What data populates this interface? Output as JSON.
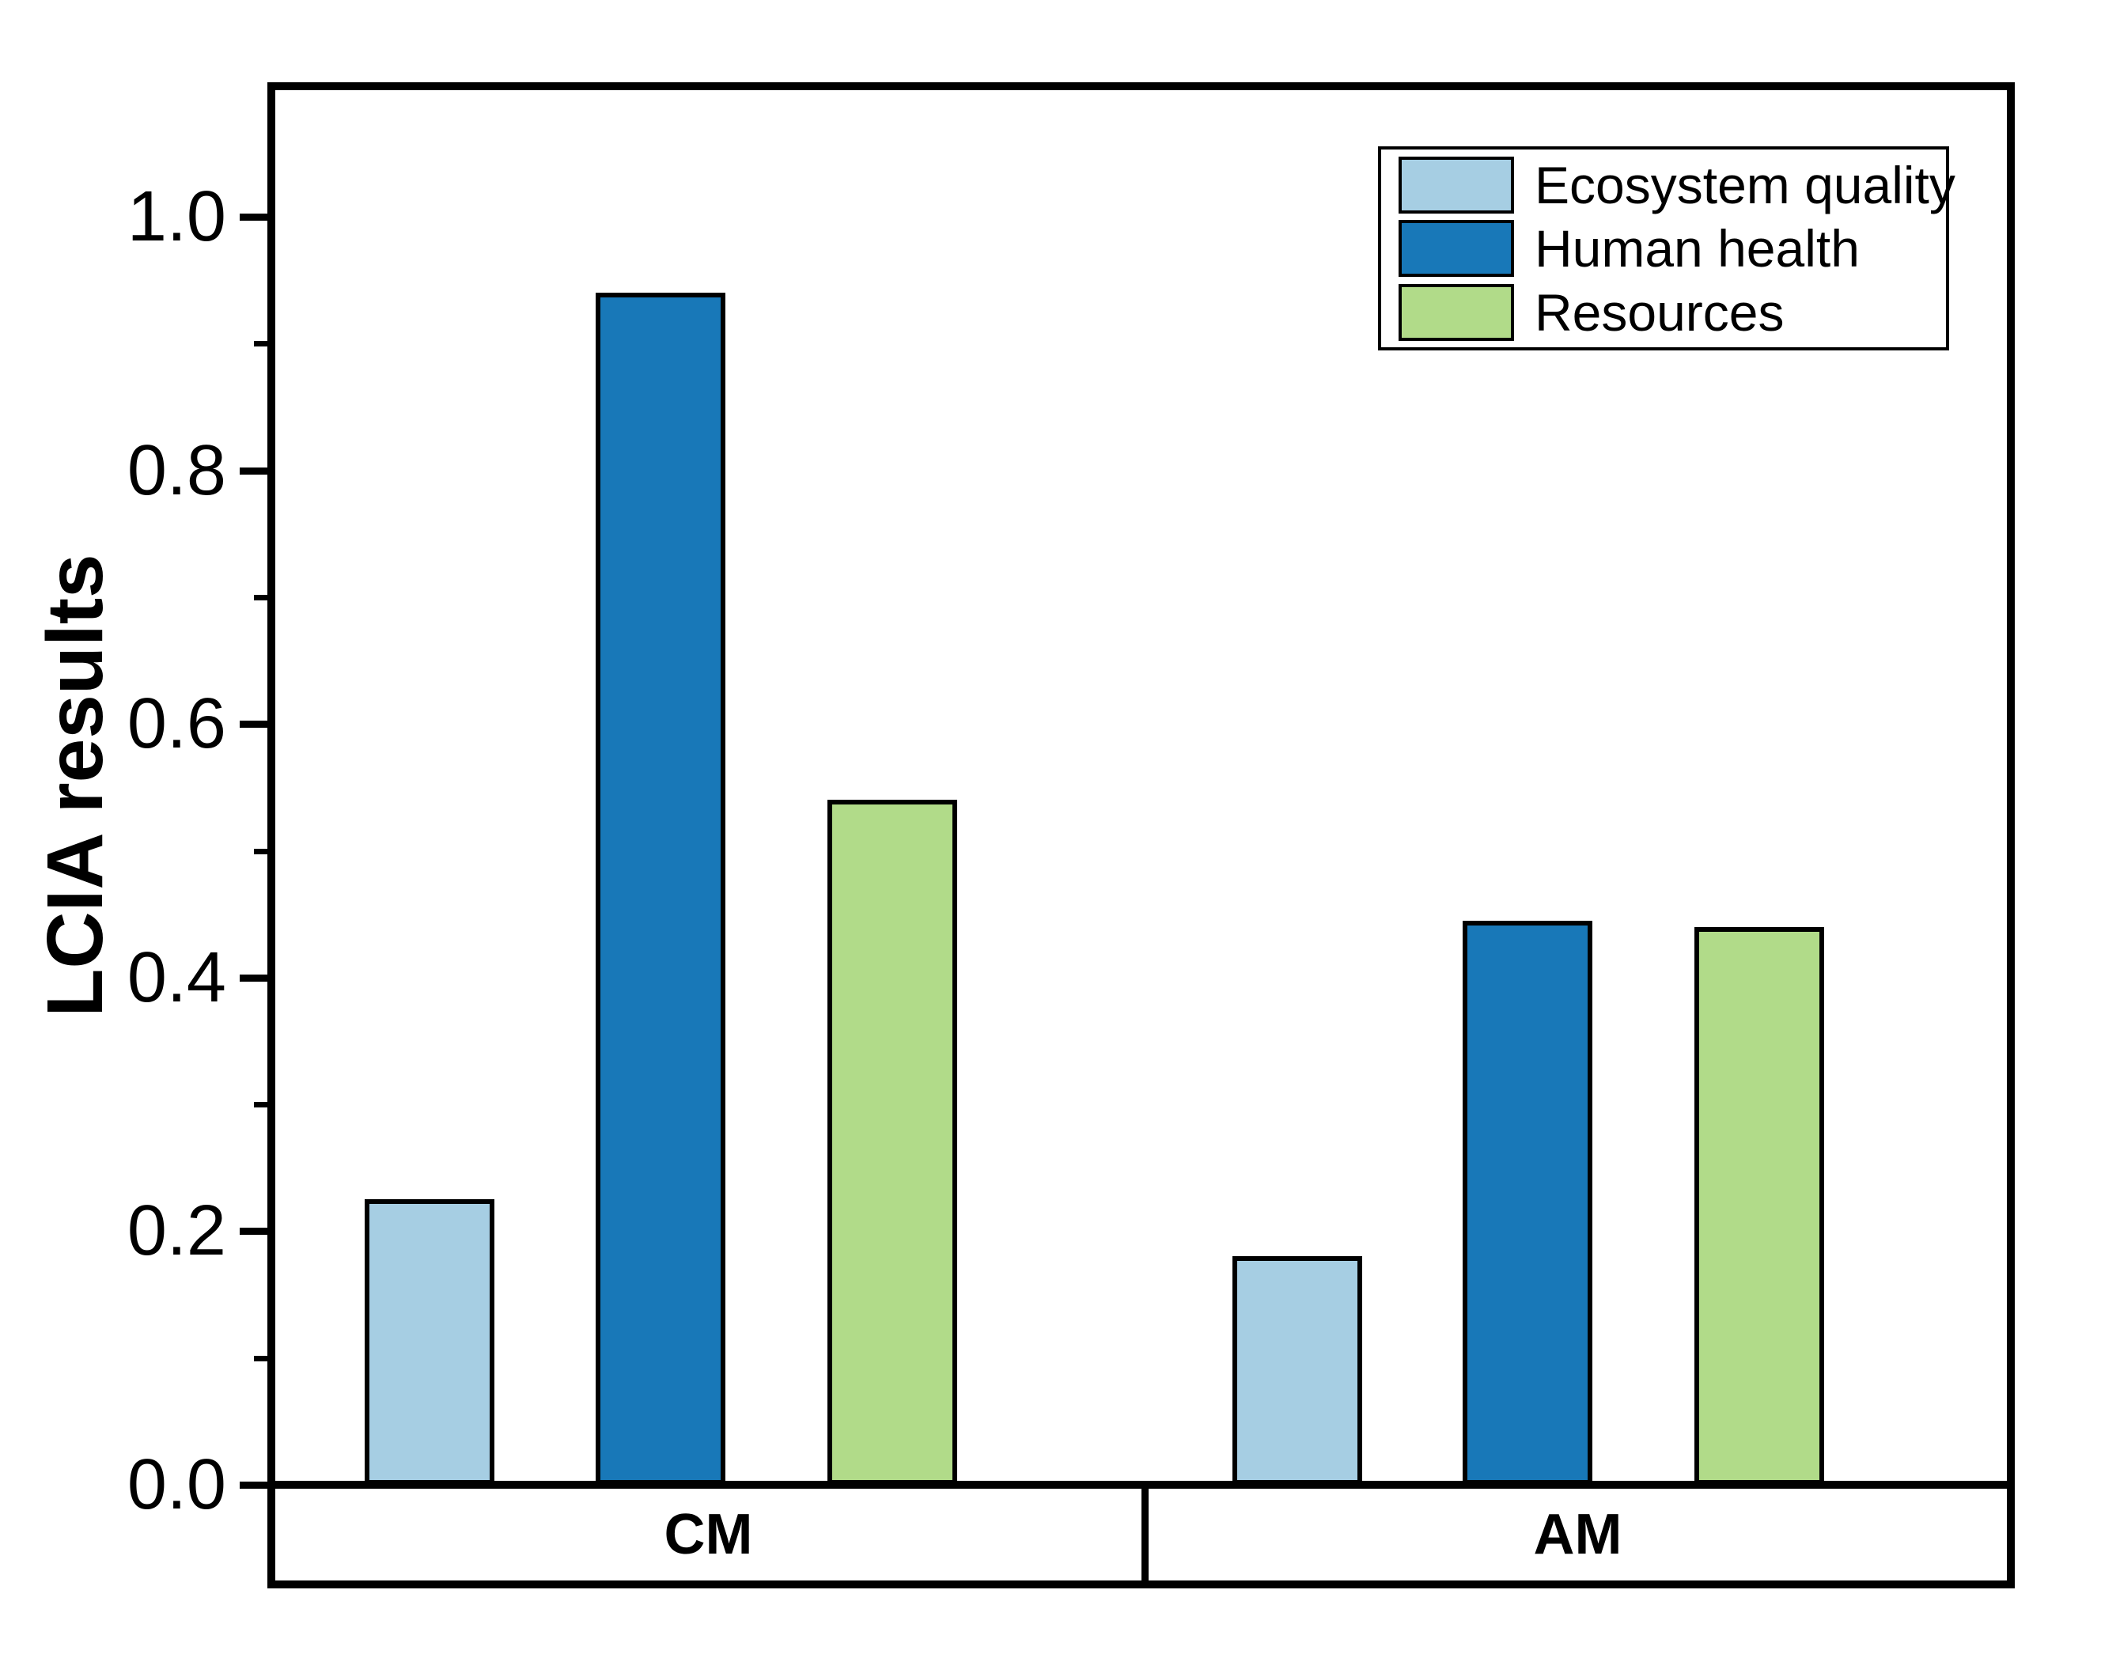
{
  "chart_data": {
    "type": "bar",
    "title": "",
    "ylabel": "LCIA results",
    "xlabel": "",
    "categories": [
      "CM",
      "AM"
    ],
    "series": [
      {
        "name": "Ecosystem quality",
        "color": "#a6cee3",
        "values": [
          0.225,
          0.18
        ]
      },
      {
        "name": "Human health",
        "color": "#1878b8",
        "values": [
          0.94,
          0.445
        ]
      },
      {
        "name": "Resources",
        "color": "#b1db89",
        "values": [
          0.54,
          0.44
        ]
      }
    ],
    "ylim": [
      0,
      1.1
    ],
    "y_tick_values": [
      0,
      0.2,
      0.4,
      0.6,
      0.8,
      1.0
    ],
    "y_tick_labels": [
      "0.0",
      "0.2",
      "0.4",
      "0.6",
      "0.8",
      "1.0"
    ],
    "y_minor_ticks": [
      0.1,
      0.3,
      0.5,
      0.7,
      0.9
    ],
    "grid": false,
    "legend_position": "top-right",
    "axis_color": "#000000",
    "text_color": "#000000",
    "bar_edge_color": "#000000",
    "background_color": "#ffffff"
  }
}
